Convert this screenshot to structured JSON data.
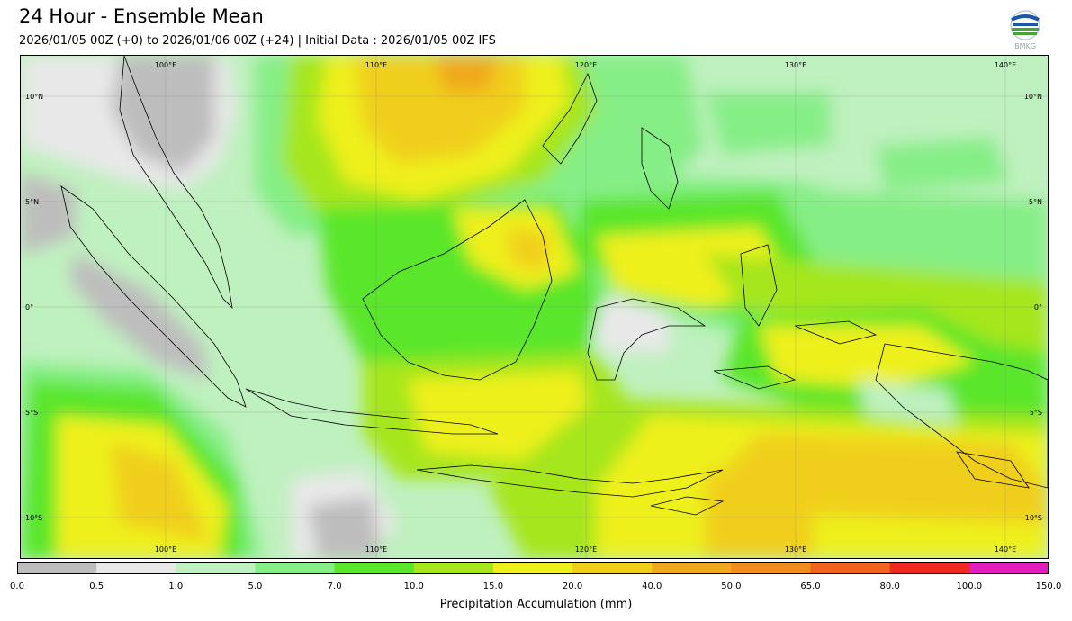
{
  "title": "24 Hour - Ensemble Mean",
  "subtitle": "2026/01/05 00Z (+0) to 2026/01/06 00Z (+24) | Initial Data : 2026/01/05 00Z IFS",
  "logo_text": "BMKG",
  "map": {
    "lon_labels": [
      "100°E",
      "110°E",
      "120°E",
      "130°E",
      "140°E"
    ],
    "lat_labels": [
      "10°N",
      "5°N",
      "0°",
      "5°S",
      "10°S"
    ]
  },
  "colorbar": {
    "label": "Precipitation Accumulation (mm)",
    "ticks": [
      "0.0",
      "0.5",
      "1.0",
      "5.0",
      "7.0",
      "10.0",
      "15.0",
      "20.0",
      "40.0",
      "50.0",
      "65.0",
      "80.0",
      "100.0",
      "150.0"
    ],
    "colors": [
      "#bdbdbd",
      "#e8e8e8",
      "#bff0bf",
      "#86ee86",
      "#5ae62a",
      "#a6e61c",
      "#eef01e",
      "#f0cf1a",
      "#f0a91e",
      "#f08d1e",
      "#f06420",
      "#ee2a22",
      "#e21dbb"
    ]
  }
}
